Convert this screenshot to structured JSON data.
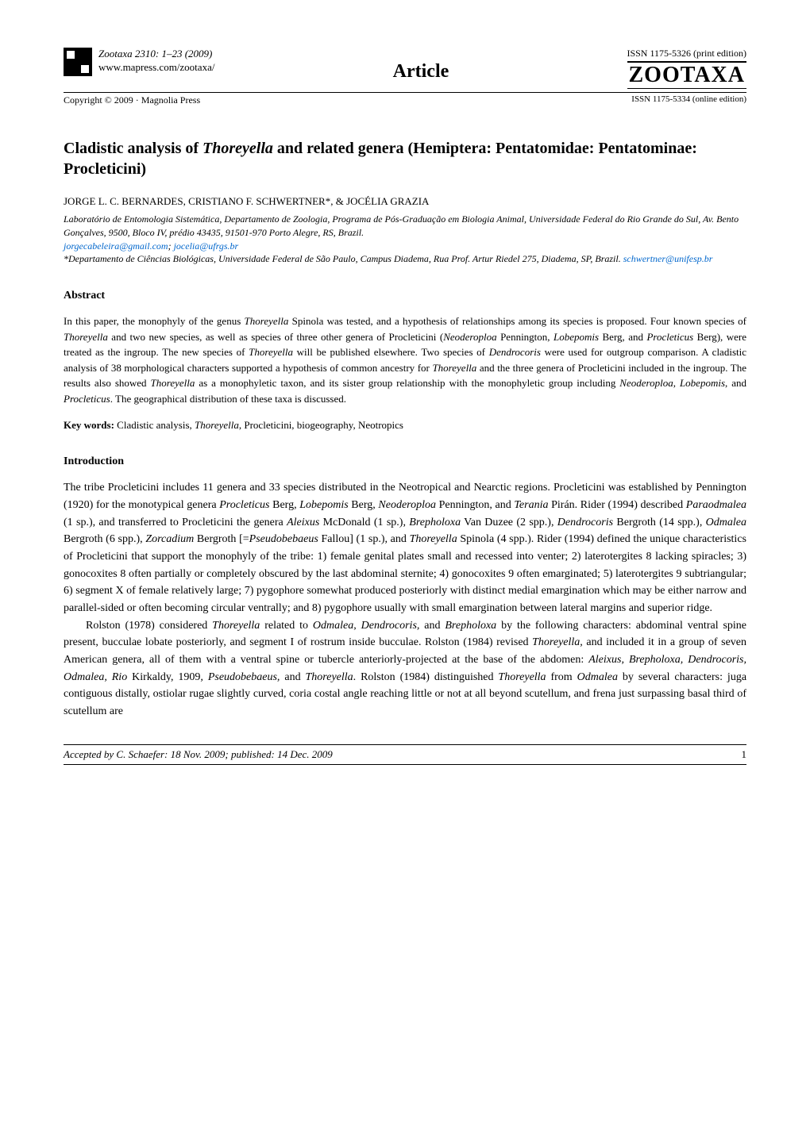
{
  "header": {
    "journal_citation": "Zootaxa 2310: 1–23    (2009)",
    "journal_url": "www.mapress.com/zootaxa/",
    "copyright": "Copyright © 2009  ·  Magnolia Press",
    "article_label": "Article",
    "issn_print": "ISSN 1175-5326  (print edition)",
    "zootaxa_logo": "ZOOTAXA",
    "issn_online": "ISSN 1175-5334 (online edition)"
  },
  "title": {
    "prefix": "Cladistic analysis of ",
    "genus": "Thoreyella",
    "suffix": " and related genera (Hemiptera: Pentatomidae: Pentatominae: Procleticini)"
  },
  "authors": "JORGE L. C. BERNARDES, CRISTIANO F. SCHWERTNER*, & JOCÉLIA GRAZIA",
  "affiliation1": {
    "text": "Laboratório de Entomologia Sistemática, Departamento de Zoologia, Programa de Pós-Graduação em Biologia Animal, Universidade Federal do Rio Grande do Sul, Av. Bento Gonçalves, 9500, Bloco IV, prédio 43435, 91501-970 Porto Alegre, RS, Brazil.",
    "email1": "jorgecabeleira@gmail.com",
    "sep": "; ",
    "email2": "jocelia@ufrgs.br"
  },
  "affiliation2": {
    "text": "*Departamento de Ciências Biológicas, Universidade Federal de São Paulo, Campus Diadema, Rua Prof. Artur Riedel 275, Diadema, SP, Brazil. ",
    "email": "schwertner@unifesp.br"
  },
  "abstract": {
    "heading": "Abstract",
    "p1a": "In this paper, the monophyly of the genus ",
    "p1b": "Thoreyella",
    "p1c": " Spinola was tested, and a hypothesis of relationships among its species is proposed. Four known species of ",
    "p1d": "Thoreyella",
    "p1e": " and two new species, as well as species of three other genera of Procleticini (",
    "p1f": "Neoderoploa",
    "p1g": " Pennington, ",
    "p1h": "Lobepomis",
    "p1i": " Berg, and ",
    "p1j": "Procleticus",
    "p1k": " Berg), were treated as the ingroup. The new species of ",
    "p1l": "Thoreyella",
    "p1m": " will be published elsewhere.  Two species of ",
    "p1n": "Dendrocoris",
    "p1o": " were used for outgroup comparison. A cladistic analysis of 38 morphological characters supported a hypothesis of common ancestry for ",
    "p1p": "Thoreyella",
    "p1q": " and the three genera of Procleticini included in the ingroup. The results also showed ",
    "p1r": "Thoreyella",
    "p1s": " as a monophyletic taxon, and its sister group relationship with the monophyletic group including ",
    "p1t": "Neoderoploa",
    "p1u": ", ",
    "p1v": "Lobepomis",
    "p1w": ", and ",
    "p1x": "Procleticus",
    "p1y": ". The geographical distribution of these taxa is discussed."
  },
  "keywords": {
    "label": "Key words:",
    "text_a": " Cladistic analysis, ",
    "text_b": "Thoreyella",
    "text_c": ", Procleticini, biogeography, Neotropics"
  },
  "introduction": {
    "heading": "Introduction",
    "para1": {
      "t1": "The tribe Procleticini includes 11 genera and 33 species distributed in the Neotropical and Nearctic regions. Procleticini was established by Pennington (1920) for the monotypical genera ",
      "i1": "Procleticus",
      "t2": " Berg, ",
      "i2": "Lobepomis",
      "t3": " Berg, ",
      "i3": "Neoderoploa",
      "t4": " Pennington, and ",
      "i4": "Terania",
      "t5": " Pirán. Rider (1994) described ",
      "i5": "Paraodmalea",
      "t6": " (1 sp.), and transferred to Procleticini the genera ",
      "i6": "Aleixus",
      "t7": " McDonald (1 sp.), ",
      "i7": "Brepholoxa",
      "t8": " Van Duzee (2 spp.), ",
      "i8": "Dendrocoris",
      "t9": " Bergroth (14 spp.), ",
      "i9": "Odmalea",
      "t10": " Bergroth (6 spp.), ",
      "i10": "Zorcadium",
      "t11": " Bergroth [=",
      "i11": "Pseudobebaeus",
      "t12": " Fallou] (1 sp.), and ",
      "i12": "Thoreyella",
      "t13": " Spinola (4 spp.). Rider (1994) defined the unique characteristics of Procleticini that support the monophyly of the tribe: 1) female genital plates small and recessed into venter; 2) laterotergites 8 lacking spiracles; 3) gonocoxites 8 often partially or completely obscured by the last abdominal sternite; 4) gonocoxites 9 often emarginated; 5) laterotergites 9 subtriangular; 6) segment X of female relatively large; 7) pygophore somewhat produced posteriorly with distinct medial emargination which may be either narrow and parallel-sided or often becoming circular ventrally; and 8) pygophore usually with small emargination between lateral margins and superior ridge."
    },
    "para2": {
      "t1": "Rolston (1978) considered ",
      "i1": "Thoreyella",
      "t2": " related to ",
      "i2": "Odmalea",
      "t3": ", ",
      "i3": "Dendrocoris,",
      "t4": " and ",
      "i4": "Brepholoxa",
      "t5": " by the following characters: abdominal ventral spine present, bucculae lobate posteriorly, and segment I of rostrum inside bucculae. Rolston (1984) revised ",
      "i5": "Thoreyella,",
      "t6": " and included it in a group of seven American genera, all of them with a ventral spine or tubercle anteriorly-projected at the base of the abdomen: ",
      "i6": "Aleixus, Brepholoxa, Dendrocoris, Odmalea, Rio",
      "t7": " Kirkaldy, 1909",
      "i7": ", Pseudobebaeus,",
      "t8": " and ",
      "i8": "Thoreyella",
      "t9": ". Rolston (1984) distinguished ",
      "i9": "Thoreyella",
      "t10": " from ",
      "i10": "Odmalea",
      "t11": " by several characters: juga contiguous distally, ostiolar rugae slightly curved, coria costal angle reaching little or not at all beyond scutellum, and frena just surpassing basal third of scutellum are"
    }
  },
  "footer": {
    "accepted": "Accepted by C. Schaefer: 18 Nov. 2009; published: 14 Dec. 2009",
    "page": "1"
  },
  "colors": {
    "link": "#0066cc",
    "text": "#000000",
    "background": "#ffffff"
  }
}
